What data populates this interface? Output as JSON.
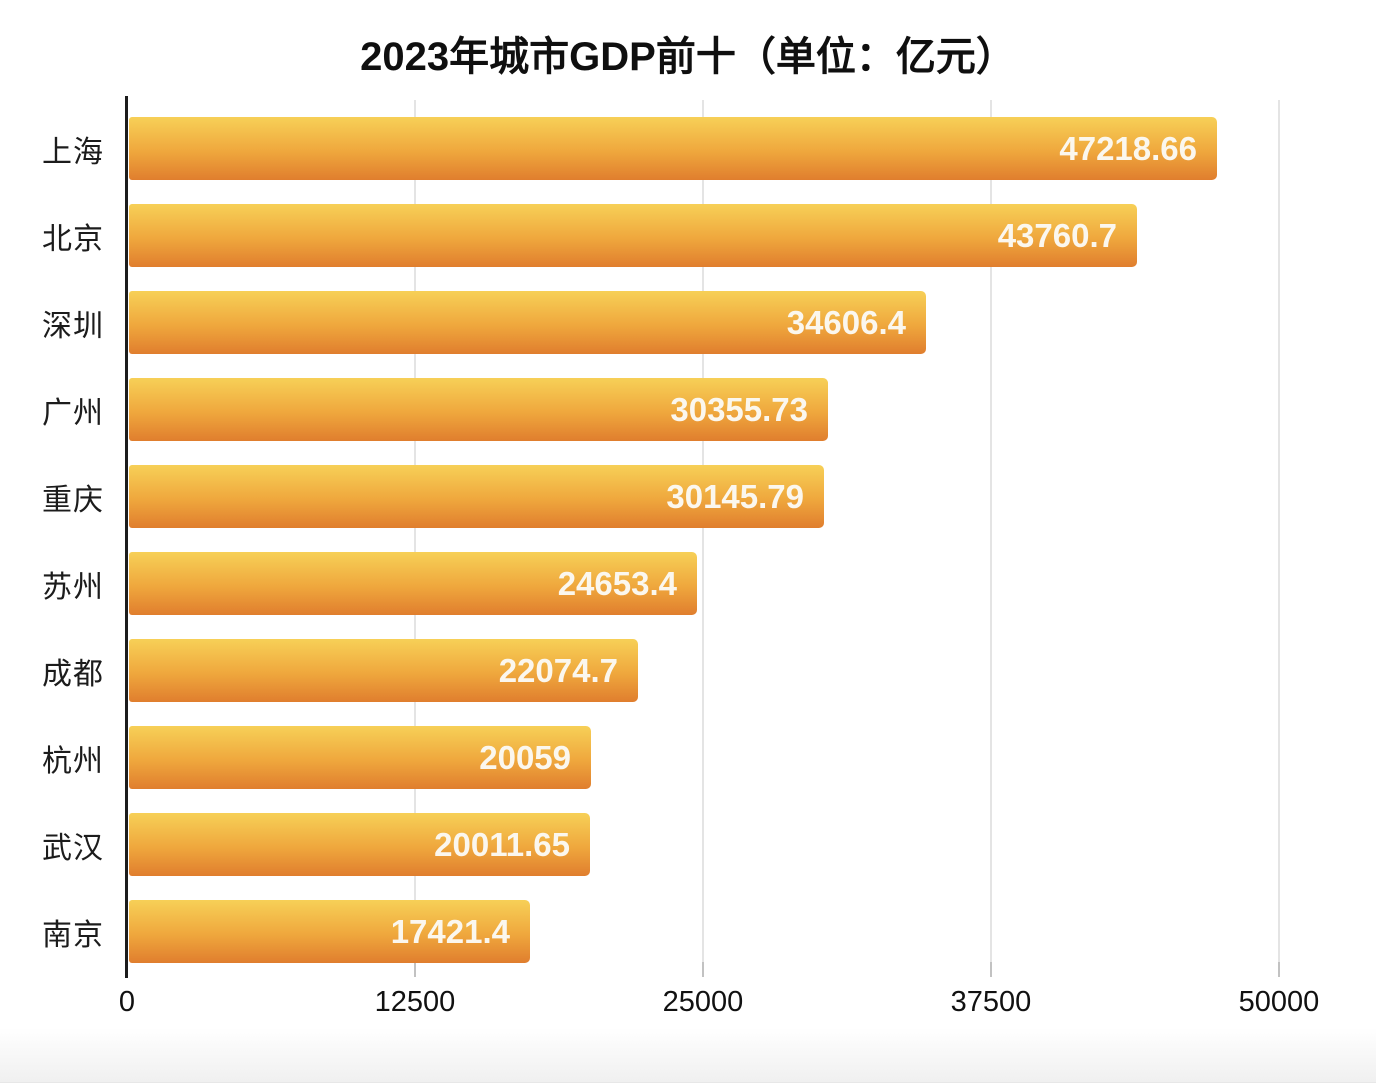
{
  "chart_data": {
    "type": "bar",
    "orientation": "horizontal",
    "title": "2023年城市GDP前十（单位：亿元）",
    "categories": [
      "上海",
      "北京",
      "深圳",
      "广州",
      "重庆",
      "苏州",
      "成都",
      "杭州",
      "武汉",
      "南京"
    ],
    "values": [
      47218.66,
      43760.7,
      34606.4,
      30355.73,
      30145.79,
      24653.4,
      22074.7,
      20059,
      20011.65,
      17421.4
    ],
    "value_labels": [
      "47218.66",
      "43760.7",
      "34606.4",
      "30355.73",
      "30145.79",
      "24653.4",
      "22074.7",
      "20059",
      "20011.65",
      "17421.4"
    ],
    "xlabel": "",
    "ylabel": "",
    "xlim": [
      0,
      50000
    ],
    "x_ticks": [
      0,
      12500,
      25000,
      37500,
      50000
    ],
    "x_tick_labels": [
      "0",
      "12500",
      "25000",
      "37500",
      "50000"
    ],
    "grid": true,
    "legend": false,
    "value_label_position": "inside-end",
    "colors": {
      "bar_gradient_top": "#f7d057",
      "bar_gradient_mid": "#efa73d",
      "bar_gradient_bottom": "#e07e2e",
      "value_text": "#fbf7ee",
      "axis_line": "#1c1c1c",
      "gridline": "#e4e4e4",
      "tick": "#c2c2c2",
      "title_text": "#0f0f0f",
      "category_text": "#1c1c1c"
    }
  }
}
